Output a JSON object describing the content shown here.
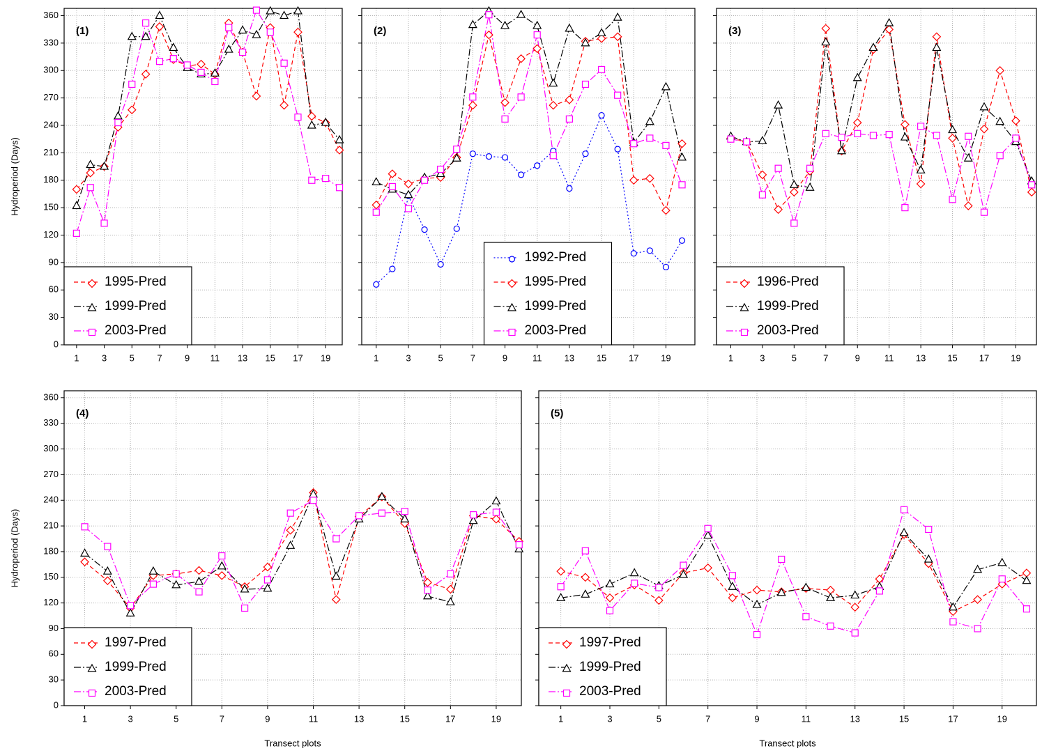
{
  "chart_data": [
    {
      "type": "line",
      "label": "(1)",
      "ylabel": "Hydroperiod (Days)",
      "x": [
        1,
        2,
        3,
        4,
        5,
        6,
        7,
        8,
        9,
        10,
        11,
        12,
        13,
        14,
        15,
        16,
        17,
        18,
        19,
        20
      ],
      "xlim": [
        0.1,
        20.2
      ],
      "xticks": [
        1,
        3,
        5,
        7,
        9,
        11,
        13,
        15,
        17,
        19
      ],
      "ylim": [
        0,
        368
      ],
      "yticks": [
        0,
        30,
        60,
        90,
        120,
        150,
        180,
        210,
        240,
        270,
        300,
        330,
        360
      ],
      "ytick_labels": true,
      "grid": true,
      "legend": "lower left",
      "series": [
        {
          "name": "1995-Pred",
          "color": "#ff0000",
          "marker": "diamond",
          "dash": "dashed",
          "values": [
            170,
            188,
            195,
            238,
            257,
            296,
            348,
            312,
            305,
            307,
            296,
            352,
            320,
            272,
            347,
            262,
            342,
            250,
            243,
            213
          ]
        },
        {
          "name": "1999-Pred",
          "color": "#000000",
          "marker": "triangle",
          "dash": "dashdot",
          "values": [
            152,
            197,
            195,
            250,
            337,
            337,
            360,
            325,
            303,
            296,
            297,
            323,
            344,
            339,
            365,
            360,
            365,
            240,
            243,
            224
          ]
        },
        {
          "name": "2003-Pred",
          "color": "#ff00ff",
          "marker": "square",
          "dash": "dashdot",
          "values": [
            122,
            172,
            133,
            243,
            285,
            352,
            310,
            313,
            306,
            298,
            288,
            347,
            320,
            366,
            342,
            308,
            249,
            180,
            182,
            172
          ]
        }
      ]
    },
    {
      "type": "line",
      "label": "(2)",
      "x": [
        1,
        2,
        3,
        4,
        5,
        6,
        7,
        8,
        9,
        10,
        11,
        12,
        13,
        14,
        15,
        16,
        17,
        18,
        19,
        20
      ],
      "xlim": [
        0.1,
        20.8
      ],
      "xticks": [
        1,
        3,
        5,
        7,
        9,
        11,
        13,
        15,
        17,
        19
      ],
      "ylim": [
        0,
        368
      ],
      "yticks": [
        0,
        30,
        60,
        90,
        120,
        150,
        180,
        210,
        240,
        270,
        300,
        330,
        360
      ],
      "ytick_labels": false,
      "grid": true,
      "legend": "lower center",
      "series": [
        {
          "name": "1992-Pred",
          "color": "#0000ff",
          "marker": "circle",
          "dash": "dotted",
          "values": [
            66,
            83,
            163,
            126,
            88,
            127,
            209,
            206,
            205,
            186,
            196,
            212,
            171,
            209,
            251,
            214,
            100,
            103,
            85,
            114
          ]
        },
        {
          "name": "1995-Pred",
          "color": "#ff0000",
          "marker": "diamond",
          "dash": "dashed",
          "values": [
            153,
            187,
            176,
            182,
            183,
            205,
            262,
            339,
            265,
            313,
            324,
            262,
            268,
            332,
            335,
            337,
            180,
            182,
            147,
            220
          ]
        },
        {
          "name": "1999-Pred",
          "color": "#000000",
          "marker": "triangle",
          "dash": "dashdot",
          "values": [
            178,
            170,
            164,
            183,
            187,
            204,
            350,
            365,
            349,
            361,
            349,
            286,
            346,
            330,
            341,
            358,
            221,
            244,
            282,
            205
          ]
        },
        {
          "name": "2003-Pred",
          "color": "#ff00ff",
          "marker": "square",
          "dash": "dashdot",
          "values": [
            145,
            173,
            149,
            180,
            192,
            214,
            271,
            361,
            247,
            271,
            339,
            207,
            247,
            285,
            301,
            273,
            220,
            226,
            218,
            175
          ]
        }
      ]
    },
    {
      "type": "line",
      "label": "(3)",
      "x": [
        1,
        2,
        3,
        4,
        5,
        6,
        7,
        8,
        9,
        10,
        11,
        12,
        13,
        14,
        15,
        16,
        17,
        18,
        19,
        20
      ],
      "xlim": [
        0.1,
        20.3
      ],
      "xticks": [
        1,
        3,
        5,
        7,
        9,
        11,
        13,
        15,
        17,
        19
      ],
      "ylim": [
        0,
        368
      ],
      "yticks": [
        0,
        30,
        60,
        90,
        120,
        150,
        180,
        210,
        240,
        270,
        300,
        330,
        360
      ],
      "ytick_labels": false,
      "grid": true,
      "legend": "lower left",
      "series": [
        {
          "name": "1996-Pred",
          "color": "#ff0000",
          "marker": "diamond",
          "dash": "dashed",
          "values": [
            226,
            222,
            186,
            148,
            167,
            190,
            346,
            212,
            243,
            323,
            345,
            241,
            176,
            337,
            226,
            152,
            236,
            300,
            245,
            167
          ]
        },
        {
          "name": "1999-Pred",
          "color": "#000000",
          "marker": "triangle",
          "dash": "dashdot",
          "values": [
            228,
            222,
            223,
            262,
            175,
            172,
            331,
            212,
            292,
            325,
            352,
            227,
            191,
            325,
            235,
            204,
            260,
            244,
            222,
            179
          ]
        },
        {
          "name": "2003-Pred",
          "color": "#ff00ff",
          "marker": "square",
          "dash": "dashdot",
          "values": [
            225,
            222,
            164,
            193,
            133,
            193,
            231,
            227,
            231,
            229,
            230,
            150,
            239,
            229,
            159,
            228,
            145,
            207,
            226,
            175
          ]
        }
      ]
    },
    {
      "type": "line",
      "label": "(4)",
      "ylabel": "Hydroperiod (Days)",
      "xlabel": "Transect plots",
      "x": [
        1,
        2,
        3,
        4,
        5,
        6,
        7,
        8,
        9,
        10,
        11,
        12,
        13,
        14,
        15,
        16,
        17,
        18,
        19,
        20
      ],
      "xlim": [
        0.1,
        20.1
      ],
      "xticks": [
        1,
        3,
        5,
        7,
        9,
        11,
        13,
        15,
        17,
        19
      ],
      "ylim": [
        0,
        368
      ],
      "yticks": [
        0,
        30,
        60,
        90,
        120,
        150,
        180,
        210,
        240,
        270,
        300,
        330,
        360
      ],
      "ytick_labels": true,
      "grid": true,
      "legend": "lower left",
      "series": [
        {
          "name": "1997-Pred",
          "color": "#ff0000",
          "marker": "diamond",
          "dash": "dashed",
          "values": [
            168,
            146,
            114,
            152,
            154,
            158,
            152,
            139,
            162,
            205,
            249,
            124,
            221,
            244,
            213,
            144,
            136,
            222,
            218,
            192
          ]
        },
        {
          "name": "1999-Pred",
          "color": "#000000",
          "marker": "triangle",
          "dash": "dashdot",
          "values": [
            178,
            157,
            108,
            157,
            141,
            145,
            163,
            136,
            137,
            187,
            247,
            151,
            218,
            244,
            218,
            128,
            121,
            216,
            239,
            183
          ]
        },
        {
          "name": "2003-Pred",
          "color": "#ff00ff",
          "marker": "square",
          "dash": "dashdot",
          "values": [
            209,
            186,
            117,
            142,
            154,
            133,
            175,
            114,
            147,
            225,
            240,
            195,
            222,
            225,
            227,
            135,
            154,
            223,
            226,
            188
          ]
        }
      ]
    },
    {
      "type": "line",
      "label": "(5)",
      "xlabel": "Transect plots",
      "x": [
        1,
        2,
        3,
        4,
        5,
        6,
        7,
        8,
        9,
        10,
        11,
        12,
        13,
        14,
        15,
        16,
        17,
        18,
        19,
        20
      ],
      "xlim": [
        0.1,
        20.4
      ],
      "xticks": [
        1,
        3,
        5,
        7,
        9,
        11,
        13,
        15,
        17,
        19
      ],
      "ylim": [
        0,
        368
      ],
      "yticks": [
        0,
        30,
        60,
        90,
        120,
        150,
        180,
        210,
        240,
        270,
        300,
        330,
        360
      ],
      "ytick_labels": false,
      "grid": true,
      "legend": "lower left",
      "series": [
        {
          "name": "1997-Pred",
          "color": "#ff0000",
          "marker": "diamond",
          "dash": "dashed",
          "values": [
            157,
            150,
            126,
            141,
            123,
            155,
            161,
            126,
            135,
            133,
            137,
            135,
            115,
            148,
            200,
            166,
            110,
            124,
            142,
            155
          ]
        },
        {
          "name": "1999-Pred",
          "color": "#000000",
          "marker": "triangle",
          "dash": "dashdot",
          "values": [
            126,
            130,
            142,
            155,
            140,
            153,
            199,
            139,
            118,
            132,
            138,
            126,
            129,
            139,
            202,
            171,
            115,
            159,
            167,
            146
          ]
        },
        {
          "name": "2003-Pred",
          "color": "#ff00ff",
          "marker": "square",
          "dash": "dashdot",
          "values": [
            139,
            181,
            111,
            143,
            138,
            164,
            207,
            152,
            83,
            171,
            104,
            93,
            85,
            134,
            229,
            206,
            98,
            90,
            148,
            113
          ]
        }
      ]
    }
  ]
}
